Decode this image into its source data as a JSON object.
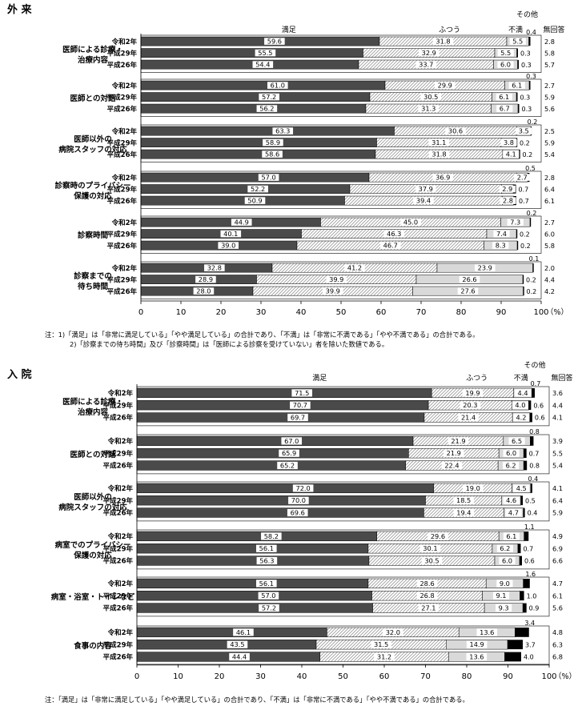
{
  "chart_data": [
    {
      "type": "bar",
      "orientation": "horizontal-stacked-100",
      "title": "外 来",
      "legend_labels": {
        "satisfied": "満足",
        "normal": "ふつう",
        "dissatisfied": "不満",
        "other": "その他",
        "noanswer": "無回答"
      },
      "xlim": [
        0,
        100
      ],
      "xticks": [
        "0",
        "10",
        "20",
        "30",
        "40",
        "50",
        "60",
        "70",
        "80",
        "90",
        "100"
      ],
      "unit": "（%）",
      "grid": false,
      "groups": [
        {
          "category": "医師による診療・治療内容",
          "rows": [
            {
              "year": "令和2年",
              "satisfied": "59.6",
              "normal": "31.8",
              "dissatisfied": "5.5",
              "other": "0.4",
              "noanswer": "2.8"
            },
            {
              "year": "平成29年",
              "satisfied": "55.5",
              "normal": "32.9",
              "dissatisfied": "5.5",
              "other": "0.3",
              "noanswer": "5.8"
            },
            {
              "year": "平成26年",
              "satisfied": "54.4",
              "normal": "33.7",
              "dissatisfied": "6.0",
              "other": "0.3",
              "noanswer": "5.7"
            }
          ]
        },
        {
          "category": "医師との対話",
          "rows": [
            {
              "year": "令和2年",
              "satisfied": "61.0",
              "normal": "29.9",
              "dissatisfied": "6.1",
              "other": "0.3",
              "noanswer": "2.7"
            },
            {
              "year": "平成29年",
              "satisfied": "57.2",
              "normal": "30.5",
              "dissatisfied": "6.1",
              "other": "0.3",
              "noanswer": "5.9"
            },
            {
              "year": "平成26年",
              "satisfied": "56.2",
              "normal": "31.3",
              "dissatisfied": "6.7",
              "other": "0.3",
              "noanswer": "5.6"
            }
          ]
        },
        {
          "category": "医師以外の病院スタッフの対応",
          "rows": [
            {
              "year": "令和2年",
              "satisfied": "63.3",
              "normal": "30.6",
              "dissatisfied": "3.5",
              "other": "0.2",
              "noanswer": "2.5"
            },
            {
              "year": "平成29年",
              "satisfied": "58.9",
              "normal": "31.1",
              "dissatisfied": "3.8",
              "other": "0.2",
              "noanswer": "5.9"
            },
            {
              "year": "平成26年",
              "satisfied": "58.6",
              "normal": "31.8",
              "dissatisfied": "4.1",
              "other": "0.2",
              "noanswer": "5.4"
            }
          ]
        },
        {
          "category": "診察時のプライバシー保護の対応",
          "rows": [
            {
              "year": "令和2年",
              "satisfied": "57.0",
              "normal": "36.9",
              "dissatisfied": "2.7",
              "other": "0.5",
              "noanswer": "2.8"
            },
            {
              "year": "平成29年",
              "satisfied": "52.2",
              "normal": "37.9",
              "dissatisfied": "2.9",
              "other": "0.7",
              "noanswer": "6.4"
            },
            {
              "year": "平成26年",
              "satisfied": "50.9",
              "normal": "39.4",
              "dissatisfied": "2.8",
              "other": "0.7",
              "noanswer": "6.1"
            }
          ]
        },
        {
          "category": "診察時間",
          "rows": [
            {
              "year": "令和2年",
              "satisfied": "44.9",
              "normal": "45.0",
              "dissatisfied": "7.3",
              "other": "0.2",
              "noanswer": "2.7"
            },
            {
              "year": "平成29年",
              "satisfied": "40.1",
              "normal": "46.3",
              "dissatisfied": "7.4",
              "other": "0.2",
              "noanswer": "6.0"
            },
            {
              "year": "平成26年",
              "satisfied": "39.0",
              "normal": "46.7",
              "dissatisfied": "8.3",
              "other": "0.2",
              "noanswer": "5.8"
            }
          ]
        },
        {
          "category": "診察までの待ち時間",
          "rows": [
            {
              "year": "令和2年",
              "satisfied": "32.8",
              "normal": "41.2",
              "dissatisfied": "23.9",
              "other": "0.1",
              "noanswer": "2.0"
            },
            {
              "year": "平成29年",
              "satisfied": "28.9",
              "normal": "39.9",
              "dissatisfied": "26.6",
              "other": "0.2",
              "noanswer": "4.4"
            },
            {
              "year": "平成26年",
              "satisfied": "28.0",
              "normal": "39.9",
              "dissatisfied": "27.6",
              "other": "0.2",
              "noanswer": "4.2"
            }
          ]
        }
      ],
      "notes": [
        "注：1)「満足」は「非常に満足している」「やや満足している」の合計であり、「不満」は「非常に不満である」「やや不満である」の合計である。",
        "2)「診察までの待ち時間」及び「診察時間」は「医師による診察を受けていない」者を除いた数値である。"
      ]
    },
    {
      "type": "bar",
      "orientation": "horizontal-stacked-100",
      "title": "入 院",
      "legend_labels": {
        "satisfied": "満足",
        "normal": "ふつう",
        "dissatisfied": "不満",
        "other": "その他",
        "noanswer": "無回答"
      },
      "xlim": [
        0,
        100
      ],
      "xticks": [
        "0",
        "10",
        "20",
        "30",
        "40",
        "50",
        "60",
        "70",
        "80",
        "90",
        "100"
      ],
      "unit": "（%）",
      "grid": false,
      "groups": [
        {
          "category": "医師による診療・治療内容",
          "rows": [
            {
              "year": "令和2年",
              "satisfied": "71.5",
              "normal": "19.9",
              "dissatisfied": "4.4",
              "other": "0.7",
              "noanswer": "3.6"
            },
            {
              "year": "平成29年",
              "satisfied": "70.7",
              "normal": "20.3",
              "dissatisfied": "4.0",
              "other": "0.6",
              "noanswer": "4.4"
            },
            {
              "year": "平成26年",
              "satisfied": "69.7",
              "normal": "21.4",
              "dissatisfied": "4.2",
              "other": "0.6",
              "noanswer": "4.1"
            }
          ]
        },
        {
          "category": "医師との対話",
          "rows": [
            {
              "year": "令和2年",
              "satisfied": "67.0",
              "normal": "21.9",
              "dissatisfied": "6.5",
              "other": "0.8",
              "noanswer": "3.9"
            },
            {
              "year": "平成29年",
              "satisfied": "65.9",
              "normal": "21.9",
              "dissatisfied": "6.0",
              "other": "0.7",
              "noanswer": "5.5"
            },
            {
              "year": "平成26年",
              "satisfied": "65.2",
              "normal": "22.4",
              "dissatisfied": "6.2",
              "other": "0.8",
              "noanswer": "5.4"
            }
          ]
        },
        {
          "category": "医師以外の病院スタッフの対応",
          "rows": [
            {
              "year": "令和2年",
              "satisfied": "72.0",
              "normal": "19.0",
              "dissatisfied": "4.5",
              "other": "0.4",
              "noanswer": "4.1"
            },
            {
              "year": "平成29年",
              "satisfied": "70.0",
              "normal": "18.5",
              "dissatisfied": "4.6",
              "other": "0.5",
              "noanswer": "6.4"
            },
            {
              "year": "平成26年",
              "satisfied": "69.6",
              "normal": "19.4",
              "dissatisfied": "4.7",
              "other": "0.4",
              "noanswer": "5.9"
            }
          ]
        },
        {
          "category": "病室でのプライバシー保護の対応",
          "rows": [
            {
              "year": "令和2年",
              "satisfied": "58.2",
              "normal": "29.6",
              "dissatisfied": "6.1",
              "other": "1.1",
              "noanswer": "4.9"
            },
            {
              "year": "平成29年",
              "satisfied": "56.1",
              "normal": "30.1",
              "dissatisfied": "6.2",
              "other": "0.7",
              "noanswer": "6.9"
            },
            {
              "year": "平成26年",
              "satisfied": "56.3",
              "normal": "30.5",
              "dissatisfied": "6.0",
              "other": "0.6",
              "noanswer": "6.6"
            }
          ]
        },
        {
          "category": "病室・浴室・トイレなど",
          "rows": [
            {
              "year": "令和2年",
              "satisfied": "56.1",
              "normal": "28.6",
              "dissatisfied": "9.0",
              "other": "1.6",
              "noanswer": "4.7"
            },
            {
              "year": "平成29年",
              "satisfied": "57.0",
              "normal": "26.8",
              "dissatisfied": "9.1",
              "other": "1.0",
              "noanswer": "6.1"
            },
            {
              "year": "平成26年",
              "satisfied": "57.2",
              "normal": "27.1",
              "dissatisfied": "9.3",
              "other": "0.9",
              "noanswer": "5.6"
            }
          ]
        },
        {
          "category": "食事の内容",
          "rows": [
            {
              "year": "令和2年",
              "satisfied": "46.1",
              "normal": "32.0",
              "dissatisfied": "13.6",
              "other": "3.4",
              "noanswer": "4.8"
            },
            {
              "year": "平成29年",
              "satisfied": "43.5",
              "normal": "31.5",
              "dissatisfied": "14.9",
              "other": "3.7",
              "noanswer": "6.3"
            },
            {
              "year": "平成26年",
              "satisfied": "44.4",
              "normal": "31.2",
              "dissatisfied": "13.6",
              "other": "4.0",
              "noanswer": "6.8"
            }
          ]
        }
      ],
      "notes": [
        "注：「満足」は「非常に満足している」「やや満足している」の合計であり、「不満」は「非常に不満である」「やや不満である」の合計である。"
      ]
    }
  ],
  "colors": {
    "satisfied": "#4a4a4a",
    "normal_hatch_bg": "#ffffff",
    "normal_hatch_line": "#9a9a9a",
    "dissatisfied": "#d9d9d9",
    "other": "#000000",
    "noanswer": "#ffffff"
  }
}
